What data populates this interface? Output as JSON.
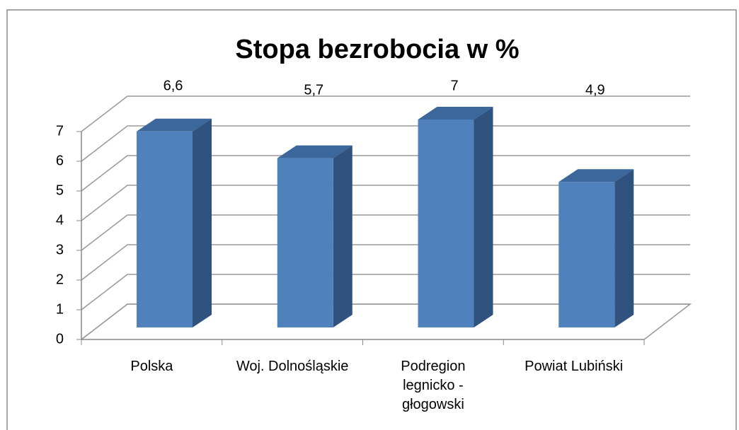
{
  "chart_data": {
    "type": "bar3d",
    "title": "Stopa bezrobocia w %",
    "categories": [
      "Polska",
      "Woj. Dolnośląskie",
      "Podregion legnicko - głogowski",
      "Powiat Lubiński"
    ],
    "values": [
      6.6,
      5.7,
      7,
      4.9
    ],
    "value_labels": [
      "6,6",
      "5,7",
      "7",
      "4,9"
    ],
    "color": "#4f81bd",
    "ylim": [
      0,
      7
    ],
    "yticks": [
      0,
      1,
      2,
      3,
      4,
      5,
      6,
      7
    ],
    "grid": true
  }
}
